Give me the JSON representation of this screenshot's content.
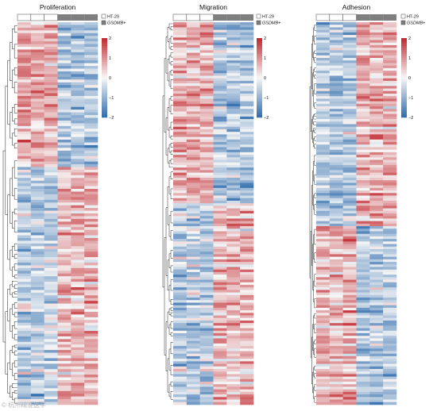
{
  "chart_data": [
    {
      "type": "heatmap",
      "title": "Proliferation",
      "n_rows": 140,
      "columns": [
        {
          "group": "HT-29",
          "pattern": "A"
        },
        {
          "group": "HT-29",
          "pattern": "A"
        },
        {
          "group": "HT-29",
          "pattern": "A"
        },
        {
          "group": "GSDMB+",
          "pattern": "B"
        },
        {
          "group": "GSDMB+",
          "pattern": "B"
        },
        {
          "group": "GSDMB+",
          "pattern": "B"
        }
      ],
      "row_blocks": [
        {
          "fraction": 0.38,
          "A": 0.7,
          "B": -0.7
        },
        {
          "fraction": 0.62,
          "A": -0.6,
          "B": 0.6
        }
      ],
      "legend": [
        "HT-29",
        "GSDMB+"
      ],
      "colorbar": {
        "min": -2,
        "max": 2,
        "ticks": [
          2,
          1,
          0,
          -1,
          -2
        ]
      },
      "seed": 11
    },
    {
      "type": "heatmap",
      "title": "Migration",
      "n_rows": 150,
      "columns": [
        {
          "group": "HT-29",
          "pattern": "A"
        },
        {
          "group": "HT-29",
          "pattern": "A"
        },
        {
          "group": "HT-29",
          "pattern": "A"
        },
        {
          "group": "GSDMB+",
          "pattern": "B"
        },
        {
          "group": "GSDMB+",
          "pattern": "B"
        },
        {
          "group": "GSDMB+",
          "pattern": "B"
        }
      ],
      "row_blocks": [
        {
          "fraction": 0.47,
          "A": 0.7,
          "B": -0.7
        },
        {
          "fraction": 0.53,
          "A": -0.6,
          "B": 0.6
        }
      ],
      "legend": [
        "HT-29",
        "GSDMB+"
      ],
      "colorbar": {
        "min": -2,
        "max": 2,
        "ticks": [
          2,
          1,
          0,
          -1,
          -2
        ]
      },
      "seed": 23
    },
    {
      "type": "heatmap",
      "title": "Adhesion",
      "n_rows": 150,
      "columns": [
        {
          "group": "HT-29",
          "pattern": "A"
        },
        {
          "group": "HT-29",
          "pattern": "A"
        },
        {
          "group": "HT-29",
          "pattern": "A"
        },
        {
          "group": "GSDMB+",
          "pattern": "B"
        },
        {
          "group": "GSDMB+",
          "pattern": "B"
        },
        {
          "group": "GSDMB+",
          "pattern": "B"
        }
      ],
      "row_blocks": [
        {
          "fraction": 0.53,
          "A": -0.65,
          "B": 0.65
        },
        {
          "fraction": 0.47,
          "A": 0.65,
          "B": -0.65
        }
      ],
      "legend": [
        "HT-29",
        "GSDMB+"
      ],
      "colorbar": {
        "min": -2,
        "max": 2,
        "ticks": [
          2,
          1,
          0,
          -1,
          -2
        ]
      },
      "seed": 37
    }
  ],
  "colors": {
    "low": "#2f6cad",
    "mid": "#f7f7f7",
    "high": "#c1272d",
    "ht29": "#ffffff",
    "gsdmb": "#7f7f7f",
    "bar_outline": "#444444"
  },
  "watermark": {
    "text": "© 杭州精准医学"
  }
}
